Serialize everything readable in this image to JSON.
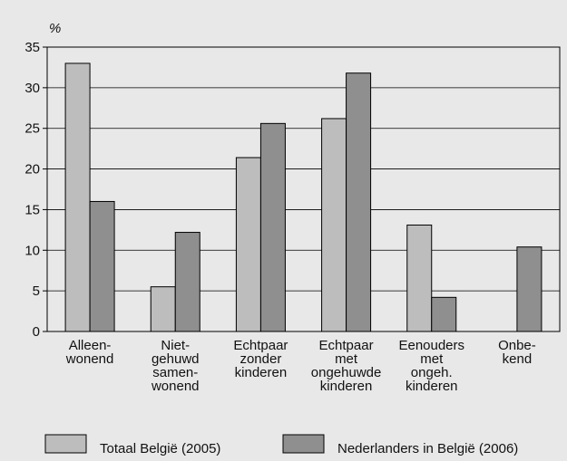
{
  "chart_data": {
    "type": "bar",
    "y_unit": "%",
    "categories": [
      "Alleen-\nwonend",
      "Niet-\ngehuwd\nsamen-\nwonend",
      "Echtpaar\nzonder\nkinderen",
      "Echtpaar\nmet\nongehuwde\nkinderen",
      "Eenouders\nmet\nongeh.\nkinderen",
      "Onbe-\nkend"
    ],
    "series": [
      {
        "name": "Totaal België (2005)",
        "color": "#bdbdbd",
        "values": [
          33,
          5.5,
          21.4,
          26.2,
          13.1,
          null
        ]
      },
      {
        "name": "Nederlanders in België (2006)",
        "color": "#8f8f8f",
        "values": [
          16,
          12.2,
          25.6,
          31.8,
          4.2,
          10.4
        ]
      }
    ],
    "ylim": [
      0,
      35
    ],
    "yticks": [
      0,
      5,
      10,
      15,
      20,
      25,
      30,
      35
    ],
    "grid": true
  }
}
